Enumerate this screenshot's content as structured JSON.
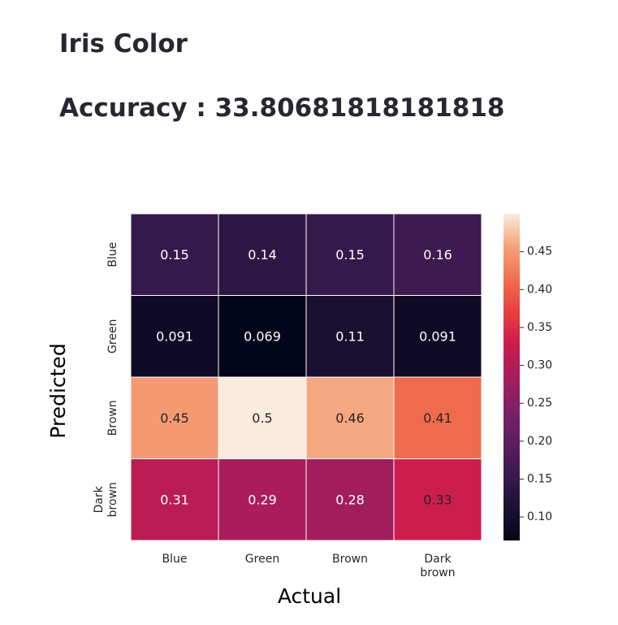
{
  "header": {
    "title": "Iris Color",
    "accuracy": "Accuracy : 33.80681818181818"
  },
  "chart_data": {
    "type": "heatmap",
    "xlabel": "Actual",
    "ylabel": "Predicted",
    "x_categories": [
      "Blue",
      "Green",
      "Brown",
      "Dark brown"
    ],
    "y_categories": [
      "Blue",
      "Green",
      "Brown",
      "Dark brown"
    ],
    "values": [
      [
        0.15,
        0.14,
        0.15,
        0.16
      ],
      [
        0.091,
        0.069,
        0.11,
        0.091
      ],
      [
        0.45,
        0.5,
        0.46,
        0.41
      ],
      [
        0.31,
        0.29,
        0.28,
        0.33
      ]
    ],
    "value_labels": [
      [
        "0.15",
        "0.14",
        "0.15",
        "0.16"
      ],
      [
        "0.091",
        "0.069",
        "0.11",
        "0.091"
      ],
      [
        "0.45",
        "0.5",
        "0.46",
        "0.41"
      ],
      [
        "0.31",
        "0.29",
        "0.28",
        "0.33"
      ]
    ],
    "colorbar": {
      "range": [
        0.069,
        0.5
      ],
      "ticks": [
        "0.10",
        "0.15",
        "0.20",
        "0.25",
        "0.30",
        "0.35",
        "0.40",
        "0.45"
      ],
      "colormap": "rocket"
    }
  }
}
